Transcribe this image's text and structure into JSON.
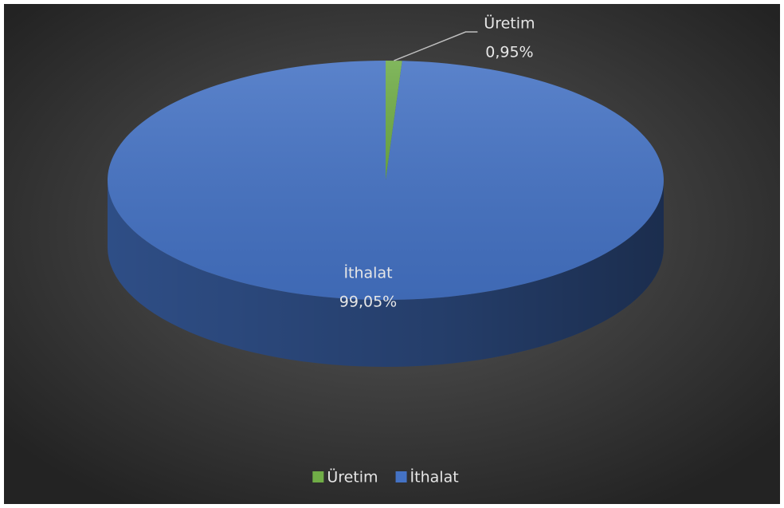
{
  "chart_data": {
    "type": "pie",
    "categories": [
      "Üretim",
      "İthalat"
    ],
    "values": [
      0.95,
      99.05
    ],
    "value_labels": [
      "0,95%",
      "99,05%"
    ],
    "colors": [
      "#70ad47",
      "#4472c4"
    ],
    "legend": "bottom"
  }
}
